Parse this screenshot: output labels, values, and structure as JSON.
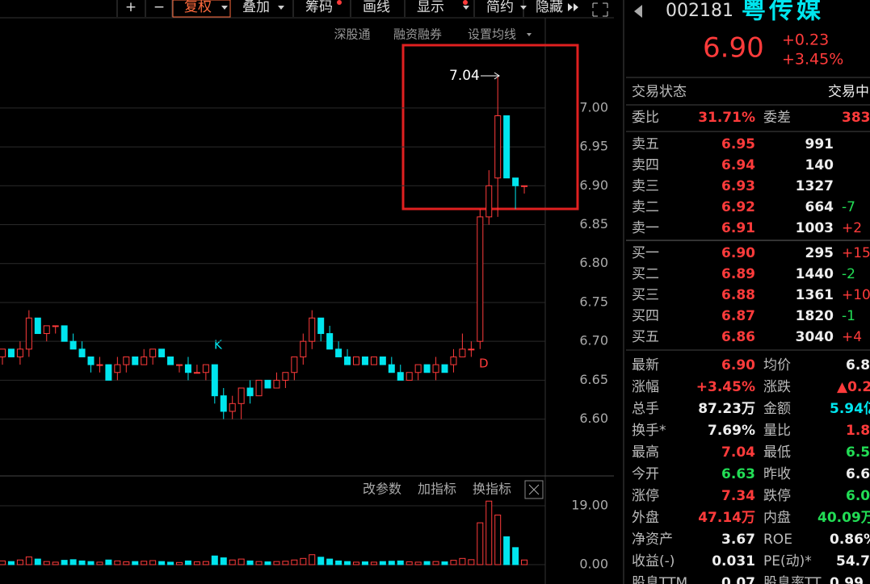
{
  "toolbar": [
    "+",
    "−",
    "复权",
    "叠加",
    "筹码",
    "画线",
    "显示",
    "简约",
    "隐藏"
  ],
  "subbar": [
    "深股通",
    "融资融券",
    "设置均线"
  ],
  "chart_data": {
    "type": "candlestick",
    "open": [
      6.68,
      6.69,
      6.68,
      6.69,
      6.73,
      6.71,
      6.72,
      6.72,
      6.7,
      6.69,
      6.68,
      6.67,
      6.67,
      6.66,
      6.67,
      6.68,
      6.67,
      6.68,
      6.69,
      6.68,
      6.67,
      6.67,
      6.66,
      6.66,
      6.67,
      6.63,
      6.61,
      6.62,
      6.64,
      6.63,
      6.65,
      6.64,
      6.65,
      6.66,
      6.68,
      6.7,
      6.73,
      6.71,
      6.69,
      6.68,
      6.67,
      6.68,
      6.67,
      6.68,
      6.67,
      6.66,
      6.65,
      6.66,
      6.67,
      6.66,
      6.67,
      6.67,
      6.68,
      6.69,
      6.7,
      6.86,
      6.91,
      6.99,
      6.91,
      6.9
    ],
    "high": [
      6.69,
      6.69,
      6.7,
      6.74,
      6.73,
      6.72,
      6.72,
      6.72,
      6.71,
      6.7,
      6.68,
      6.68,
      6.67,
      6.68,
      6.68,
      6.68,
      6.69,
      6.69,
      6.69,
      6.68,
      6.67,
      6.68,
      6.67,
      6.67,
      6.67,
      6.64,
      6.63,
      6.64,
      6.65,
      6.65,
      6.65,
      6.66,
      6.66,
      6.68,
      6.71,
      6.74,
      6.73,
      6.72,
      6.7,
      6.69,
      6.68,
      6.68,
      6.68,
      6.68,
      6.68,
      6.67,
      6.66,
      6.67,
      6.67,
      6.68,
      6.67,
      6.69,
      6.71,
      6.7,
      6.87,
      6.92,
      7.04,
      6.99,
      6.91,
      6.9
    ],
    "low": [
      6.67,
      6.68,
      6.67,
      6.68,
      6.71,
      6.7,
      6.71,
      6.7,
      6.69,
      6.68,
      6.66,
      6.66,
      6.65,
      6.65,
      6.66,
      6.67,
      6.67,
      6.67,
      6.68,
      6.67,
      6.66,
      6.65,
      6.66,
      6.65,
      6.62,
      6.6,
      6.6,
      6.6,
      6.62,
      6.63,
      6.64,
      6.64,
      6.64,
      6.65,
      6.67,
      6.69,
      6.7,
      6.69,
      6.68,
      6.67,
      6.67,
      6.67,
      6.67,
      6.67,
      6.66,
      6.65,
      6.65,
      6.65,
      6.66,
      6.65,
      6.66,
      6.66,
      6.68,
      6.68,
      6.69,
      6.85,
      6.86,
      6.91,
      6.87,
      6.89
    ],
    "close": [
      6.69,
      6.68,
      6.69,
      6.73,
      6.71,
      6.72,
      6.72,
      6.7,
      6.69,
      6.68,
      6.67,
      6.67,
      6.65,
      6.67,
      6.68,
      6.67,
      6.68,
      6.69,
      6.68,
      6.67,
      6.67,
      6.66,
      6.66,
      6.67,
      6.63,
      6.61,
      6.62,
      6.64,
      6.63,
      6.65,
      6.64,
      6.65,
      6.66,
      6.68,
      6.7,
      6.73,
      6.71,
      6.69,
      6.68,
      6.67,
      6.68,
      6.67,
      6.68,
      6.67,
      6.66,
      6.65,
      6.66,
      6.67,
      6.66,
      6.67,
      6.66,
      6.68,
      6.69,
      6.69,
      6.86,
      6.9,
      6.99,
      6.91,
      6.9,
      6.9
    ],
    "ylim": [
      6.527,
      7.116
    ],
    "yticks": [
      {
        "value": 7.0,
        "label": "7.00"
      },
      {
        "value": 6.95,
        "label": "6.95"
      },
      {
        "value": 6.9,
        "label": "6.90"
      },
      {
        "value": 6.85,
        "label": "6.85"
      },
      {
        "value": 6.8,
        "label": "6.80"
      },
      {
        "value": 6.75,
        "label": "6.75"
      },
      {
        "value": 6.7,
        "label": "6.70"
      },
      {
        "value": 6.65,
        "label": "6.65"
      },
      {
        "value": 6.6,
        "label": "6.60"
      }
    ],
    "up_color": "#ff3b3b",
    "down_color": "#00e5ee",
    "annotations": [
      "7.04",
      "K",
      "D"
    ]
  },
  "volume": {
    "values": [
      1.2,
      1.0,
      1.5,
      2.5,
      1.8,
      1.0,
      0.8,
      1.4,
      1.6,
      1.2,
      1.0,
      0.8,
      1.5,
      1.2,
      0.9,
      1.0,
      1.1,
      1.3,
      1.0,
      0.8,
      0.7,
      1.2,
      0.9,
      1.0,
      2.8,
      2.2,
      1.5,
      1.8,
      1.2,
      1.0,
      0.9,
      1.0,
      1.1,
      1.5,
      2.0,
      3.2,
      2.4,
      1.8,
      1.2,
      1.0,
      0.8,
      0.9,
      0.8,
      1.0,
      1.1,
      1.2,
      0.9,
      0.8,
      1.0,
      1.0,
      0.9,
      1.4,
      2.0,
      1.6,
      13.5,
      20.5,
      16.0,
      9.0,
      5.5,
      1.5
    ],
    "ylim": [
      0,
      19
    ],
    "yticks": [
      {
        "value": 19,
        "label": "19.00"
      },
      {
        "value": 0,
        "label": "0.00"
      }
    ],
    "tools": [
      "改参数",
      "加指标",
      "换指标"
    ]
  },
  "quote": {
    "code": "002181",
    "name": "粤传媒",
    "price": "6.90",
    "change": "+0.23",
    "pct": "+3.45%"
  },
  "status": [
    "交易状态",
    "交易中"
  ],
  "ratio": [
    "委比",
    "31.71%",
    "委差",
    "383"
  ],
  "book": [
    [
      "卖五",
      "6.95",
      "991"
    ],
    [
      "卖四",
      "6.94",
      "140"
    ],
    [
      "卖三",
      "6.93",
      "1327"
    ],
    [
      "卖二",
      "6.92",
      "664",
      "-7"
    ],
    [
      "卖一",
      "6.91",
      "1003",
      "+2"
    ],
    [
      "买一",
      "6.90",
      "295",
      "+15"
    ],
    [
      "买二",
      "6.89",
      "1440",
      "-2"
    ],
    [
      "买三",
      "6.88",
      "1361",
      "+10"
    ],
    [
      "买四",
      "6.87",
      "1820",
      "-1"
    ],
    [
      "买五",
      "6.86",
      "3040",
      "+4"
    ]
  ],
  "stats": [
    [
      "最新",
      "6.90",
      "均价",
      "6.8"
    ],
    [
      "涨幅",
      "+3.45%",
      "涨跌",
      "▲0.2"
    ],
    [
      "总手",
      "87.23万",
      "金额",
      "5.94亿"
    ],
    [
      "换手*",
      "7.69%",
      "量比",
      "1.8"
    ],
    [
      "最高",
      "7.04",
      "最低",
      "6.5"
    ],
    [
      "今开",
      "6.63",
      "昨收",
      "6.6"
    ],
    [
      "涨停",
      "7.34",
      "跌停",
      "6.0"
    ],
    [
      "外盘",
      "47.14万",
      "内盘",
      "40.09万"
    ],
    [
      "净资产",
      "3.67",
      "ROE",
      "0.86%"
    ],
    [
      "收益(-)",
      "0.031",
      "PE(动)*",
      "54.7"
    ],
    [
      "股息TTM",
      "0.07",
      "股息率TT",
      "0.99"
    ]
  ]
}
